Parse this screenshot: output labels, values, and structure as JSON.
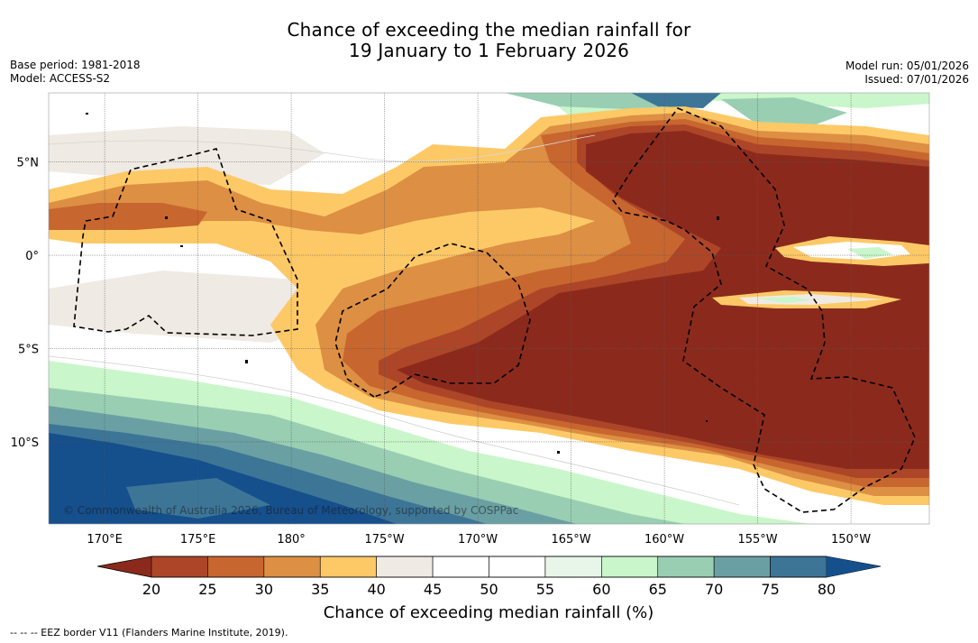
{
  "header": {
    "title_line1": "Chance of exceeding the median rainfall for",
    "title_line2": "19 January to 1 February 2026",
    "base_period": "Base period: 1981-2018",
    "model": "Model: ACCESS-S2",
    "model_run": "Model run: 05/01/2026",
    "issued": "Issued: 07/01/2026"
  },
  "map": {
    "extent": {
      "lon_min": 167,
      "lon_max": 214.2,
      "lat_min": -14.4,
      "lat_max": 8.7
    },
    "lat_ticks": [
      {
        "value": 5,
        "label": "5°N"
      },
      {
        "value": 0,
        "label": "0°"
      },
      {
        "value": -5,
        "label": "5°S"
      },
      {
        "value": -10,
        "label": "10°S"
      }
    ],
    "lon_ticks": [
      {
        "value": 170,
        "label": "170°E"
      },
      {
        "value": 175,
        "label": "175°E"
      },
      {
        "value": 180,
        "label": "180°"
      },
      {
        "value": 185,
        "label": "175°W"
      },
      {
        "value": 190,
        "label": "170°W"
      },
      {
        "value": 195,
        "label": "165°W"
      },
      {
        "value": 200,
        "label": "160°W"
      },
      {
        "value": 205,
        "label": "155°W"
      },
      {
        "value": 210,
        "label": "150°W"
      }
    ],
    "copyright": "© Commonwealth of Australia 2026, Bureau of Meteorology, supported by COSPPac"
  },
  "colorbar": {
    "ticks": [
      "20",
      "25",
      "30",
      "35",
      "40",
      "45",
      "50",
      "55",
      "60",
      "65",
      "70",
      "75",
      "80"
    ],
    "under_color": "#8b2a1c",
    "over_color": "#154f8c",
    "colors": [
      "#ad4628",
      "#c8662f",
      "#dd8f43",
      "#fdc967",
      "#efeae3",
      "#ffffff",
      "#ffffff",
      "#e8f5e9",
      "#c9f6ca",
      "#99ceb3",
      "#6aa0a3",
      "#3d7597"
    ],
    "label": "Chance of exceeding median rainfall (%)"
  },
  "legend": {
    "eez": "--  --  -- EEZ border V11 (Flanders Marine Institute, 2019)."
  }
}
